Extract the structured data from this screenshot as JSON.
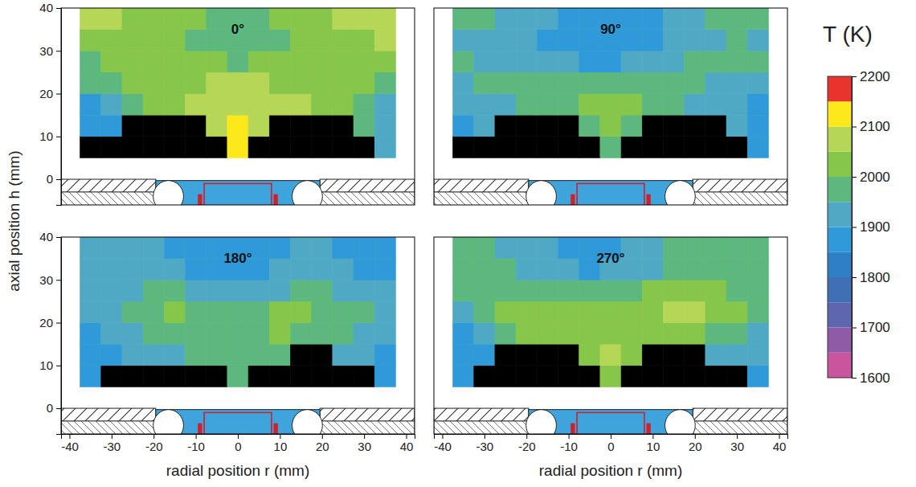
{
  "chart_data": {
    "type": "heatmap",
    "x_label": "radial position r (mm)",
    "y_label": "axial position h (mm)",
    "xlim": [
      -42,
      42
    ],
    "xticks": [
      -40,
      -30,
      -20,
      -10,
      0,
      10,
      20,
      30,
      40
    ],
    "ylim": [
      -6,
      40
    ],
    "yticks": [
      0,
      10,
      20,
      30,
      40
    ],
    "x": [
      -35,
      -30,
      -25,
      -20,
      -15,
      -10,
      -5,
      0,
      5,
      10,
      15,
      20,
      25,
      30,
      35
    ],
    "y": [
      7.5,
      12.5,
      17.5,
      22.5,
      27.5,
      32.5,
      37.5
    ],
    "colorbar": {
      "title": "T (K)",
      "range": [
        1600,
        2200
      ],
      "ticks": [
        1600,
        1700,
        1800,
        1900,
        2000,
        2100,
        2200
      ],
      "colors": [
        "#c8559e",
        "#8f5aa6",
        "#5e67ae",
        "#3f6fb4",
        "#2f7fc4",
        "#2f9ad8",
        "#4fa9c4",
        "#5cb87c",
        "#86c64a",
        "#b6d656",
        "#fde81c",
        "#e8342c"
      ]
    },
    "panels": [
      {
        "title": "0°",
        "cells": [
          [
            null,
            null,
            null,
            null,
            null,
            null,
            null,
            2120,
            null,
            null,
            null,
            null,
            null,
            null,
            1910
          ],
          [
            1870,
            1880,
            null,
            null,
            null,
            null,
            2060,
            2110,
            2070,
            null,
            null,
            null,
            null,
            1960,
            1930
          ],
          [
            1880,
            1900,
            1970,
            2020,
            2040,
            2050,
            2070,
            2080,
            2060,
            2060,
            2070,
            2040,
            2010,
            1980,
            1940
          ],
          [
            1960,
            1990,
            2010,
            2040,
            2040,
            2040,
            2050,
            2050,
            2050,
            2040,
            2040,
            2030,
            2010,
            2000,
            1990
          ],
          [
            1990,
            2000,
            2010,
            2020,
            2030,
            2010,
            2000,
            1990,
            2000,
            2020,
            2030,
            2040,
            2040,
            2030,
            2020
          ],
          [
            2040,
            2030,
            2020,
            2010,
            2000,
            1990,
            1970,
            1960,
            1970,
            1990,
            2010,
            2020,
            2030,
            2040,
            2050
          ],
          [
            2090,
            2060,
            2040,
            2030,
            2020,
            2010,
            1980,
            1960,
            1980,
            2010,
            2030,
            2040,
            2050,
            2070,
            2090
          ]
        ]
      },
      {
        "title": "90°",
        "cells": [
          [
            null,
            null,
            null,
            null,
            null,
            null,
            null,
            1970,
            null,
            null,
            null,
            null,
            null,
            null,
            1880
          ],
          [
            1880,
            1900,
            null,
            null,
            null,
            null,
            1990,
            2000,
            1990,
            null,
            null,
            null,
            null,
            1920,
            1890
          ],
          [
            1900,
            1920,
            1940,
            1960,
            1970,
            1980,
            2000,
            2010,
            2000,
            1980,
            1960,
            1940,
            1920,
            1900,
            1880
          ],
          [
            1930,
            1950,
            1960,
            1960,
            1950,
            1950,
            1960,
            1970,
            1970,
            1960,
            1960,
            1950,
            1940,
            1920,
            1910
          ],
          [
            1950,
            1940,
            1930,
            1920,
            1910,
            1900,
            1890,
            1890,
            1900,
            1910,
            1930,
            1950,
            1960,
            1960,
            1960
          ],
          [
            1930,
            1930,
            1920,
            1900,
            1890,
            1870,
            1860,
            1860,
            1870,
            1880,
            1900,
            1920,
            1940,
            1950,
            1940
          ],
          [
            1990,
            1960,
            1930,
            1910,
            1900,
            1880,
            1870,
            1860,
            1870,
            1880,
            1900,
            1930,
            1960,
            1990,
            1950
          ]
        ]
      },
      {
        "title": "180°",
        "cells": [
          [
            1850,
            null,
            null,
            null,
            null,
            null,
            null,
            1960,
            null,
            null,
            null,
            null,
            null,
            null,
            1880
          ],
          [
            1860,
            1880,
            1910,
            1920,
            1940,
            1960,
            1970,
            1990,
            1960,
            1950,
            null,
            null,
            1920,
            1900,
            1890
          ],
          [
            1880,
            1900,
            1940,
            1960,
            1980,
            1990,
            1990,
            1980,
            1990,
            2000,
            1990,
            1970,
            1950,
            1930,
            1910
          ],
          [
            1900,
            1930,
            1970,
            1990,
            2000,
            1990,
            1970,
            1960,
            1980,
            2000,
            2000,
            1990,
            1980,
            1960,
            1940
          ],
          [
            1920,
            1930,
            1940,
            1950,
            1950,
            1940,
            1920,
            1910,
            1920,
            1940,
            1950,
            1950,
            1940,
            1930,
            1920
          ],
          [
            1940,
            1930,
            1920,
            1910,
            1900,
            1890,
            1880,
            1870,
            1880,
            1900,
            1910,
            1910,
            1900,
            1890,
            1890
          ],
          [
            1930,
            1920,
            1910,
            1900,
            1890,
            1880,
            1870,
            1870,
            1880,
            1890,
            1900,
            1900,
            1890,
            1880,
            1880
          ]
        ]
      },
      {
        "title": "270°",
        "cells": [
          [
            1860,
            null,
            null,
            null,
            null,
            null,
            null,
            2040,
            null,
            null,
            null,
            null,
            null,
            null,
            1890
          ],
          [
            1870,
            1890,
            null,
            null,
            null,
            null,
            2030,
            2060,
            2040,
            null,
            null,
            null,
            1940,
            1920,
            1900
          ],
          [
            1890,
            1920,
            1980,
            2020,
            2030,
            2030,
            2040,
            2040,
            2030,
            2020,
            2020,
            2010,
            1980,
            1950,
            1920
          ],
          [
            1920,
            1960,
            2010,
            2030,
            2030,
            2020,
            2010,
            2020,
            2030,
            2040,
            2050,
            2070,
            2040,
            2000,
            1960
          ],
          [
            1950,
            1970,
            1990,
            1990,
            1970,
            1960,
            1950,
            1960,
            1980,
            2000,
            2010,
            2020,
            2010,
            1990,
            1980
          ],
          [
            1970,
            1960,
            1950,
            1930,
            1910,
            1900,
            1890,
            1900,
            1920,
            1940,
            1960,
            1980,
            1990,
            1990,
            1980
          ],
          [
            1960,
            1950,
            1940,
            1920,
            1900,
            1890,
            1880,
            1890,
            1900,
            1920,
            1950,
            1980,
            1990,
            1990,
            1980
          ]
        ]
      }
    ]
  }
}
